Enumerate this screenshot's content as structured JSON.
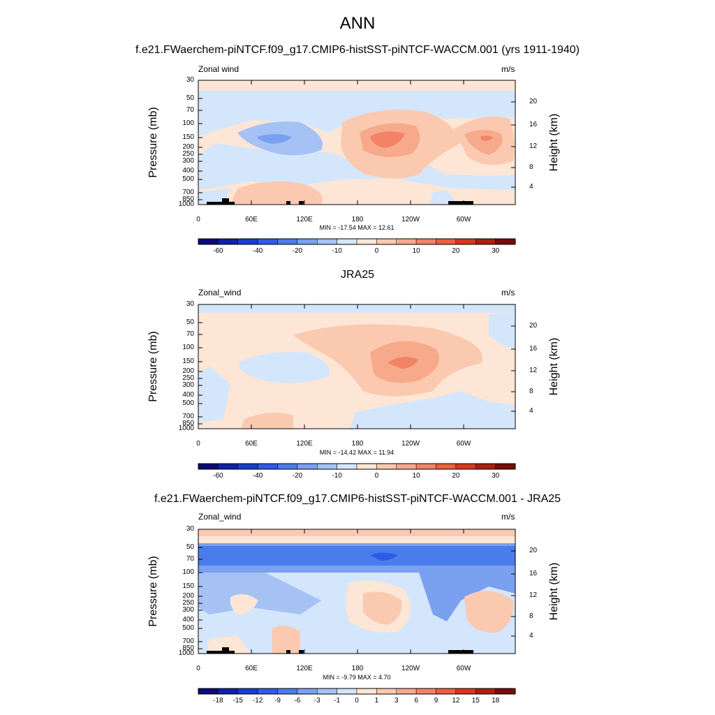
{
  "title": "ANN",
  "colors": {
    "frame": "#000000",
    "land": "#000000",
    "palette": [
      "#0a0a7a",
      "#0f21a8",
      "#1a3ccd",
      "#2f5ae8",
      "#4a7ceb",
      "#7aa0f0",
      "#a6c2f5",
      "#d4e6fb",
      "#fde6d6",
      "#fbc9b0",
      "#f7a98b",
      "#f38366",
      "#ed5e3e",
      "#d9361f",
      "#ac1f12",
      "#780b0b"
    ]
  },
  "chart_data": [
    {
      "type": "heatmap",
      "title": "f.e21.FWaerchem-piNTCF.f09_g17.CMIP6-histSST-piNTCF-WACCM.001 (yrs 1911-1940)",
      "left_label": "Zonal wind",
      "units": "m/s",
      "ylabel": "Pressure (mb)",
      "ylabel_right": "Height (km)",
      "x_ticks": [
        "0",
        "60E",
        "120E",
        "180",
        "120W",
        "60W"
      ],
      "y_ticks": [
        "30",
        "50",
        "70",
        "100",
        "150",
        "200",
        "250",
        "300",
        "400",
        "500",
        "700",
        "850",
        "1000"
      ],
      "y_right_ticks": [
        "20",
        "16",
        "12",
        "8",
        "4"
      ],
      "min_max": "MIN = -17.54  MAX =  12.61",
      "colorbar_labels": [
        "-60",
        "-40",
        "-20",
        "-10",
        "0",
        "10",
        "20",
        "30"
      ],
      "min": -17.54,
      "max": 12.61
    },
    {
      "type": "heatmap",
      "title": "JRA25",
      "left_label": "Zonal_wind",
      "units": "m/s",
      "ylabel": "Pressure (mb)",
      "ylabel_right": "Height (km)",
      "x_ticks": [
        "0",
        "60E",
        "120E",
        "180",
        "120W",
        "60W"
      ],
      "y_ticks": [
        "30",
        "50",
        "70",
        "100",
        "150",
        "200",
        "250",
        "300",
        "400",
        "500",
        "700",
        "850",
        "1000"
      ],
      "y_right_ticks": [
        "20",
        "16",
        "12",
        "8",
        "4"
      ],
      "min_max": "MIN = -14.42  MAX =  11.94",
      "colorbar_labels": [
        "-60",
        "-40",
        "-20",
        "-10",
        "0",
        "10",
        "20",
        "30"
      ],
      "min": -14.42,
      "max": 11.94
    },
    {
      "type": "heatmap",
      "title": "f.e21.FWaerchem-piNTCF.f09_g17.CMIP6-histSST-piNTCF-WACCM.001 - JRA25",
      "left_label": "Zonal_wind",
      "units": "m/s",
      "ylabel": "Pressure (mb)",
      "ylabel_right": "Height (km)",
      "x_ticks": [
        "0",
        "60E",
        "120E",
        "180",
        "120W",
        "60W"
      ],
      "y_ticks": [
        "30",
        "50",
        "70",
        "100",
        "150",
        "200",
        "250",
        "300",
        "400",
        "500",
        "700",
        "850",
        "1000"
      ],
      "y_right_ticks": [
        "20",
        "16",
        "12",
        "8",
        "4"
      ],
      "min_max": "MIN =  -9.79  MAX =   4.70",
      "colorbar_labels": [
        "-18",
        "-15",
        "-12",
        "-9",
        "-6",
        "-3",
        "-1",
        "0",
        "1",
        "3",
        "6",
        "9",
        "12",
        "15",
        "18"
      ],
      "min": -9.79,
      "max": 4.7
    }
  ]
}
